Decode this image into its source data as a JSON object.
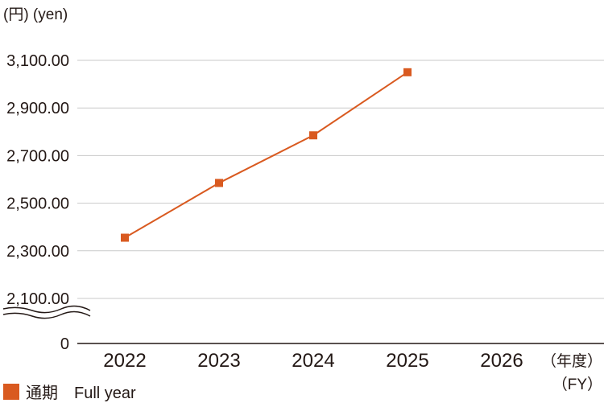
{
  "chart_data": {
    "type": "line",
    "ylabel": "(円) (yen)",
    "xlabel_ja": "（年度）",
    "xlabel_en": "（FY）",
    "yticks": [
      {
        "value": 3100,
        "label": "3,100.00"
      },
      {
        "value": 2900,
        "label": "2,900.00"
      },
      {
        "value": 2700,
        "label": "2,700.00"
      },
      {
        "value": 2500,
        "label": "2,500.00"
      },
      {
        "value": 2300,
        "label": "2,300.00"
      },
      {
        "value": 2100,
        "label": "2,100.00"
      }
    ],
    "zero_label": "0",
    "axis_break": true,
    "ylim": [
      2100,
      3100
    ],
    "categories": [
      "2022",
      "2023",
      "2024",
      "2025",
      "2026"
    ],
    "series": [
      {
        "name": "通期　Full year",
        "values": [
          2355,
          2585,
          2785,
          3050,
          null
        ],
        "color": "#D95A20"
      }
    ],
    "grid": true,
    "legend_position": "bottom-left"
  }
}
